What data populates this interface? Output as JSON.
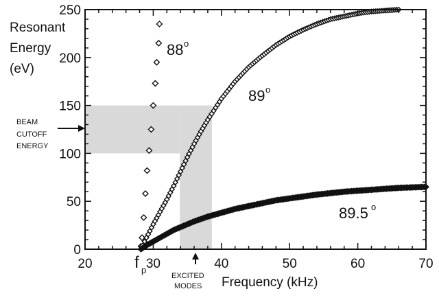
{
  "chart_data": {
    "type": "scatter",
    "ylabel_lines": [
      "Resonant",
      "Energy",
      "(eV)"
    ],
    "xlabel": "Frequency (kHz)",
    "xlim": [
      20,
      70
    ],
    "ylim": [
      0,
      250
    ],
    "x_ticks": [
      "20",
      "30",
      "40",
      "50",
      "60",
      "70"
    ],
    "y_ticks": [
      "0",
      "50",
      "100",
      "150",
      "200",
      "250"
    ],
    "fp_label": "f",
    "fp_sub": "p",
    "fp_x": 28.2,
    "beam_cutoff_lines": [
      "BEAM",
      "CUTOFF",
      "ENERGY"
    ],
    "beam_cutoff_range": [
      100,
      150
    ],
    "excited_modes_lines": [
      "EXCITED",
      "MODES"
    ],
    "excited_modes_range": [
      33.9,
      38.6
    ],
    "series": [
      {
        "name": "88°",
        "label_text": "88",
        "marker": "diamond-open",
        "x": [
          28.2,
          28.35,
          28.6,
          28.85,
          29.1,
          29.4,
          29.7,
          30.0,
          30.3,
          30.5,
          30.8,
          30.9
        ],
        "y": [
          3,
          12,
          33,
          58,
          82,
          103,
          125,
          150,
          173,
          195,
          215,
          235
        ]
      },
      {
        "name": "89°",
        "label_text": "89",
        "marker": "diamond-open",
        "x": [
          28.2,
          29,
          30,
          31,
          32,
          33,
          34,
          35,
          36,
          37,
          38,
          40,
          42,
          44,
          46,
          48,
          50,
          52,
          54,
          56,
          58,
          60,
          62,
          64,
          66
        ],
        "y": [
          0,
          12,
          26,
          39,
          52,
          66,
          81,
          96,
          110,
          123,
          135,
          157,
          175,
          190,
          202,
          213,
          222,
          229,
          235,
          240,
          243,
          246,
          248,
          249,
          250
        ]
      },
      {
        "name": "89.5°",
        "label_text": "89.5",
        "marker": "diamond-filled",
        "x": [
          28.2,
          29,
          30,
          31,
          32,
          33,
          34,
          36,
          38,
          40,
          42,
          44,
          46,
          48,
          50,
          52,
          54,
          56,
          58,
          60,
          62,
          64,
          66,
          68,
          70
        ],
        "y": [
          0,
          4,
          8,
          12,
          16,
          20,
          23,
          29,
          34,
          38,
          42,
          45,
          48,
          51,
          53,
          55,
          57,
          58.5,
          60,
          61,
          62,
          63,
          64,
          64.5,
          65
        ]
      }
    ]
  }
}
